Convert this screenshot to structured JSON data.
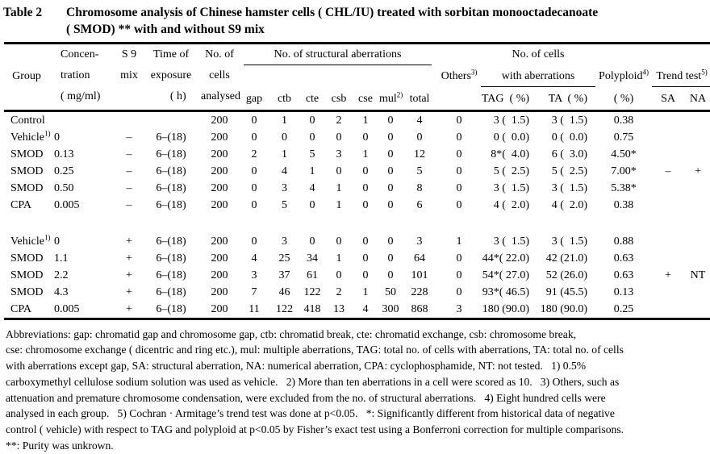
{
  "title": {
    "table_label": "Table 2",
    "caption_line1": "Chromosome analysis of Chinese hamster cells ( CHL/IU) treated with sorbitan monooctadecanoate",
    "caption_line2": "( SMOD) ** with and without S9 mix"
  },
  "header": {
    "group": "Group",
    "concentration": "Concen-\ntration\n( mg/ml)",
    "s9_mix": "S 9\nmix",
    "time_of_exposure": "Time of\nexposure\n     ( h)",
    "cells_analysed": "No. of\ncells\nanalysed",
    "structural_aberrations": "No. of structural aberrations",
    "sub_columns": [
      "gap",
      "ctb",
      "cte",
      "csb",
      "cse"
    ],
    "mul": {
      "text": "mul",
      "sup": "2)"
    },
    "total": "total",
    "others": {
      "text": "Others",
      "sup": "3)"
    },
    "cells_with_aberrations_line1": "No. of cells",
    "cells_with_aberrations_line2": "with aberrations",
    "tag": "TAG  ( %)",
    "ta": "TA  ( %)",
    "polyploid": {
      "text": "Polyploid",
      "sup": "4)"
    },
    "polyploid_unit": "( %)",
    "trend_test": {
      "text": "Trend test",
      "sup": "5)"
    },
    "sa": "SA",
    "na": "NA"
  },
  "table": {
    "column_keys": [
      "concentration",
      "s9-mix",
      "time-of-exposure",
      "cells-analysed",
      "gap",
      "ctb",
      "cte",
      "csb",
      "cse",
      "mul",
      "total",
      "others",
      "tag",
      "ta",
      "polyploid",
      "sa",
      "na"
    ],
    "rows": [
      {
        "group": "Control",
        "group_sup": "",
        "cells": [
          "",
          "",
          "",
          "200",
          "0",
          "1",
          "0",
          "2",
          "1",
          "0",
          "4",
          "0",
          "3 (  1.5)",
          "3 (  1.5)",
          "0.38",
          "",
          ""
        ]
      },
      {
        "group": "Vehicle",
        "group_sup": "1)",
        "cells": [
          "0",
          "–",
          "6–(18)",
          "200",
          "0",
          "0",
          "0",
          "0",
          "0",
          "0",
          "0",
          "0",
          "0 (  0.0)",
          "0 (  0.0)",
          "0.75",
          "",
          ""
        ]
      },
      {
        "group": "SMOD",
        "group_sup": "",
        "cells": [
          "0.13",
          "–",
          "6–(18)",
          "200",
          "2",
          "1",
          "5",
          "3",
          "1",
          "0",
          "12",
          "0",
          "8*(  4.0)",
          "6 (  3.0)",
          "4.50*",
          "",
          ""
        ]
      },
      {
        "group": "SMOD",
        "group_sup": "",
        "cells": [
          "0.25",
          "–",
          "6–(18)",
          "200",
          "0",
          "4",
          "1",
          "0",
          "0",
          "0",
          "5",
          "0",
          "5 (  2.5)",
          "5 (  2.5)",
          "7.00*",
          "–",
          "+"
        ]
      },
      {
        "group": "SMOD",
        "group_sup": "",
        "cells": [
          "0.50",
          "–",
          "6–(18)",
          "200",
          "0",
          "3",
          "4",
          "1",
          "0",
          "0",
          "8",
          "0",
          "3 (  1.5)",
          "3 (  1.5)",
          "5.38*",
          "",
          ""
        ]
      },
      {
        "group": "CPA",
        "group_sup": "",
        "cells": [
          "0.005",
          "–",
          "6–(18)",
          "200",
          "0",
          "5",
          "0",
          "1",
          "0",
          "0",
          "6",
          "0",
          "4 (  2.0)",
          "4 (  2.0)",
          "0.38",
          "",
          ""
        ]
      },
      {
        "separator": true
      },
      {
        "group": "Vehicle",
        "group_sup": "1)",
        "cells": [
          "0",
          "+",
          "6–(18)",
          "200",
          "0",
          "3",
          "0",
          "0",
          "0",
          "0",
          "3",
          "1",
          "3 (  1.5)",
          "3 (  1.5)",
          "0.88",
          "",
          ""
        ]
      },
      {
        "group": "SMOD",
        "group_sup": "",
        "cells": [
          "1.1",
          "+",
          "6–(18)",
          "200",
          "4",
          "25",
          "34",
          "1",
          "0",
          "0",
          "64",
          "0",
          "44*( 22.0)",
          "42 (21.0)",
          "0.63",
          "",
          ""
        ]
      },
      {
        "group": "SMOD",
        "group_sup": "",
        "cells": [
          "2.2",
          "+",
          "6–(18)",
          "200",
          "3",
          "37",
          "61",
          "0",
          "0",
          "0",
          "101",
          "0",
          "54*( 27.0)",
          "52 (26.0)",
          "0.63",
          "+",
          "NT"
        ]
      },
      {
        "group": "SMOD",
        "group_sup": "",
        "cells": [
          "4.3",
          "+",
          "6–(18)",
          "200",
          "7",
          "46",
          "122",
          "2",
          "1",
          "50",
          "228",
          "0",
          "93*( 46.5)",
          "91 (45.5)",
          "0.13",
          "",
          ""
        ]
      },
      {
        "group": "CPA",
        "group_sup": "",
        "cells": [
          "0.005",
          "+",
          "6–(18)",
          "200",
          "11",
          "122",
          "418",
          "13",
          "4",
          "300",
          "868",
          "3",
          "180 (90.0)",
          "180 (90.0)",
          "0.25",
          "",
          ""
        ]
      }
    ]
  },
  "footnotes": [
    "Abbreviations: gap: chromatid gap and chromosome gap, ctb: chromatid break, cte: chromatid exchange, csb: chromosome break,",
    "cse: chromosome exchange ( dicentric and ring etc.), mul: multiple aberrations, TAG: total no. of cells with aberrations, TA: total no. of cells",
    "with aberrations except gap, SA: structural aberration, NA: numerical aberration, CPA: cyclophosphamide, NT: not tested.   1) 0.5%",
    "carboxymethyl cellulose sodium solution was used as vehicle.   2) More than ten aberrations in a cell were scored as 10.   3) Others, such as",
    "attenuation and premature chromosome condensation, were excluded from the no. of structural aberrations.   4) Eight hundred cells were",
    "analysed in each group.   5) Cochran · Armitage’s trend test was done at p<0.05.   *: Significantly different from historical data of negative",
    "control ( vehicle) with respect to TAG and polyploid at p<0.05 by Fisher’s exact test using a Bonferroni correction for multiple comparisons.",
    "**: Purity was unkrown."
  ]
}
